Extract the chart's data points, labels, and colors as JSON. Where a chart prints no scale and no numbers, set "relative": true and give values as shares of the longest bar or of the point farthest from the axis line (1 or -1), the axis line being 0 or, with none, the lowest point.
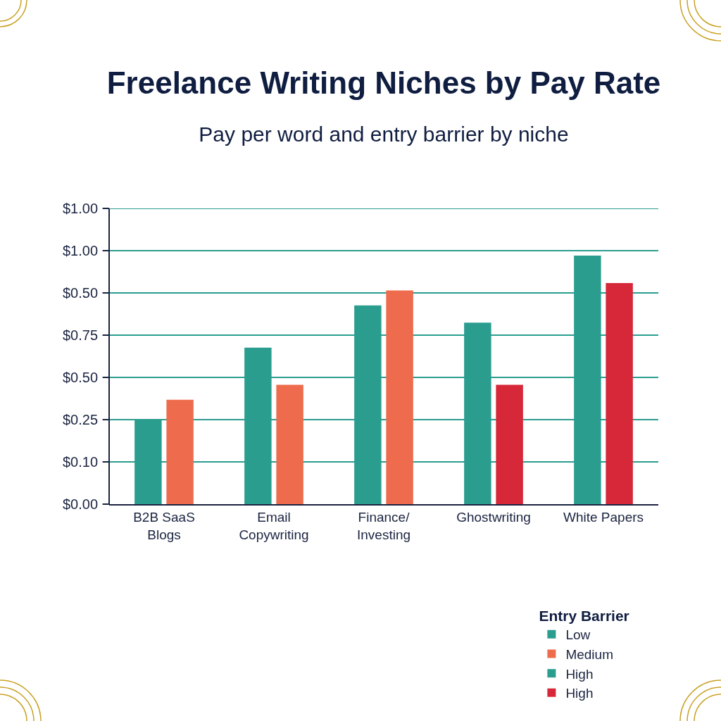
{
  "chart_data": {
    "type": "bar",
    "title": "Freelance Writing Niches by Pay Rate",
    "subtitle": "Pay per word and entry barrier by niche",
    "categories": [
      "B2B SaaS\nBlogs",
      "Email\nCopywriting",
      "Finance/\nInvesting",
      "Ghostwriting",
      "White Papers"
    ],
    "relative": true,
    "series": [
      {
        "name": "Low",
        "color": "#2a9d8f",
        "values": [
          0.34,
          0.63,
          0.8,
          0.73,
          1
        ]
      },
      {
        "name": "Medium",
        "color": "#ee6c4d",
        "values": [
          0.42,
          0.48,
          0.86,
          null,
          null
        ]
      },
      {
        "name": "High",
        "color": "#2a9d8f",
        "values": [
          null,
          null,
          null,
          null,
          null
        ]
      },
      {
        "name": "High",
        "color": "#d62839",
        "values": [
          null,
          null,
          null,
          0.48,
          0.89
        ]
      }
    ],
    "legend_title": "Entry Barrier",
    "legend": "bottom right",
    "annotations": [
      "$0.00",
      "$0.10",
      "$0.25",
      "$0.50",
      "$0.75",
      "$0.50",
      "$1.00",
      "$1.00"
    ],
    "ref_lines": [
      {
        "axis": "y",
        "value": 0.17,
        "color": "#2a9d8f"
      },
      {
        "axis": "y",
        "value": 0.34,
        "color": "#2a9d8f"
      },
      {
        "axis": "y",
        "value": 0.51,
        "color": "#2a9d8f"
      },
      {
        "axis": "y",
        "value": 0.68,
        "color": "#2a9d8f"
      },
      {
        "axis": "y",
        "value": 0.85,
        "color": "#2a9d8f"
      },
      {
        "axis": "y",
        "value": 1.02,
        "color": "#2a9d8f"
      },
      {
        "axis": "y",
        "value": 1.19,
        "color": "#2a9d8f"
      }
    ]
  }
}
